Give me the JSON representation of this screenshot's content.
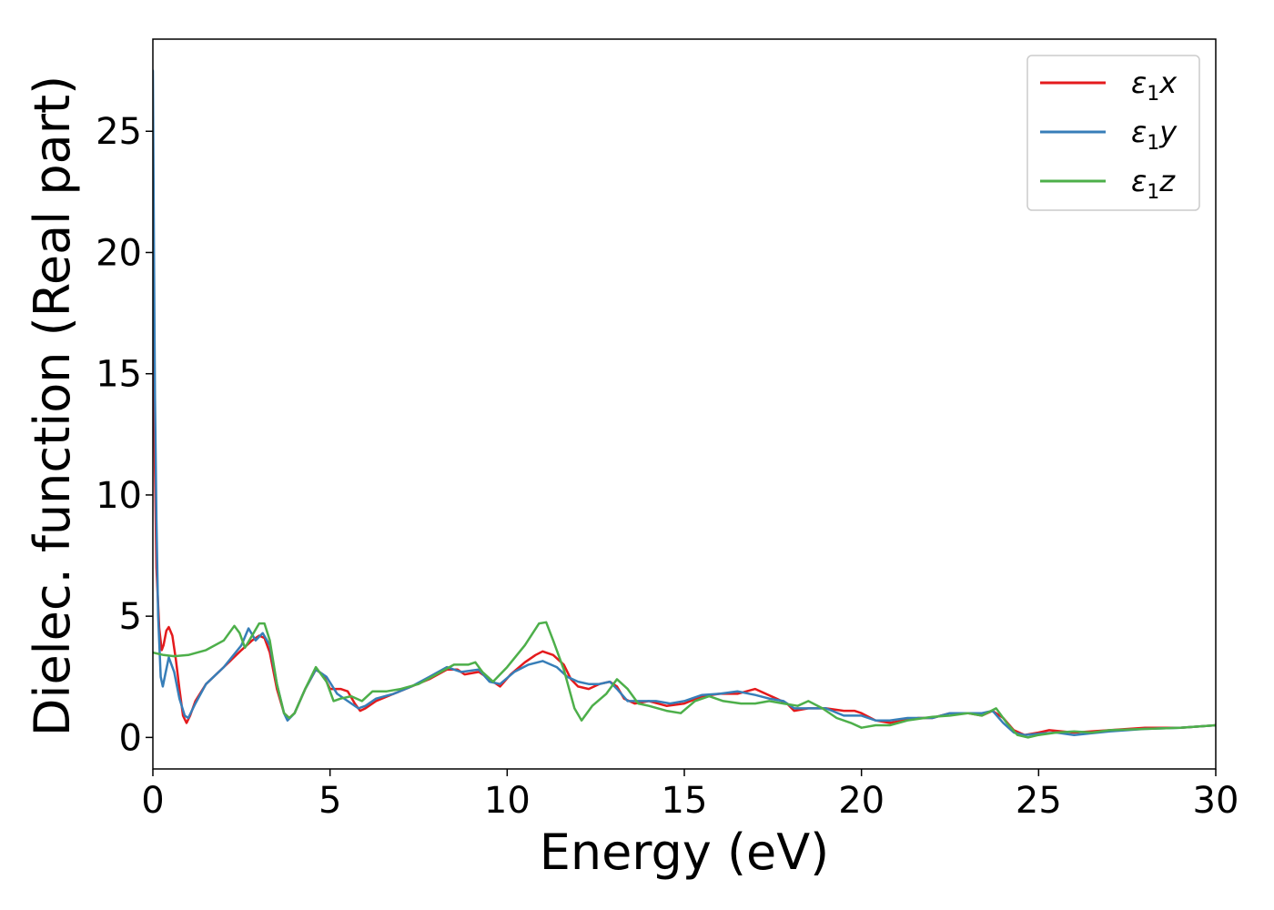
{
  "chart_data": {
    "type": "line",
    "xlabel": "Energy (eV)",
    "ylabel": "Dielec. function (Real part)",
    "xlim": [
      0,
      30
    ],
    "ylim": [
      -1.3,
      28.8
    ],
    "xticks": [
      0,
      5,
      10,
      15,
      20,
      25,
      30
    ],
    "yticks": [
      0,
      5,
      10,
      15,
      20,
      25
    ],
    "grid": false,
    "legend_position": "top-right",
    "series": [
      {
        "name": "ε1x",
        "label_base": "ε",
        "label_sub": "1",
        "label_suffix": "x",
        "color": "#e41a1c",
        "points": [
          [
            0,
            20
          ],
          [
            0.05,
            12
          ],
          [
            0.1,
            7
          ],
          [
            0.18,
            4.5
          ],
          [
            0.25,
            3.6
          ],
          [
            0.3,
            3.8
          ],
          [
            0.38,
            4.4
          ],
          [
            0.45,
            4.55
          ],
          [
            0.55,
            4.2
          ],
          [
            0.65,
            3.2
          ],
          [
            0.75,
            2
          ],
          [
            0.85,
            0.9
          ],
          [
            0.95,
            0.6
          ],
          [
            1.05,
            0.9
          ],
          [
            1.2,
            1.5
          ],
          [
            1.5,
            2.2
          ],
          [
            2,
            2.9
          ],
          [
            2.5,
            3.6
          ],
          [
            2.8,
            4.0
          ],
          [
            3.0,
            4.2
          ],
          [
            3.15,
            4.1
          ],
          [
            3.3,
            3.5
          ],
          [
            3.5,
            2.0
          ],
          [
            3.7,
            1.0
          ],
          [
            3.85,
            0.8
          ],
          [
            4.0,
            1.0
          ],
          [
            4.3,
            2.0
          ],
          [
            4.6,
            2.8
          ],
          [
            4.8,
            2.6
          ],
          [
            5.0,
            2.0
          ],
          [
            5.3,
            2.0
          ],
          [
            5.5,
            1.9
          ],
          [
            5.7,
            1.4
          ],
          [
            5.85,
            1.1
          ],
          [
            6.0,
            1.2
          ],
          [
            6.3,
            1.5
          ],
          [
            6.8,
            1.8
          ],
          [
            7.3,
            2.1
          ],
          [
            7.8,
            2.4
          ],
          [
            8.3,
            2.8
          ],
          [
            8.6,
            2.8
          ],
          [
            8.8,
            2.6
          ],
          [
            9.2,
            2.7
          ],
          [
            9.5,
            2.4
          ],
          [
            9.8,
            2.1
          ],
          [
            10.1,
            2.6
          ],
          [
            10.5,
            3.1
          ],
          [
            10.8,
            3.4
          ],
          [
            11.0,
            3.55
          ],
          [
            11.3,
            3.4
          ],
          [
            11.6,
            3.0
          ],
          [
            11.8,
            2.4
          ],
          [
            12.0,
            2.1
          ],
          [
            12.3,
            2.0
          ],
          [
            12.6,
            2.2
          ],
          [
            12.9,
            2.3
          ],
          [
            13.1,
            2.1
          ],
          [
            13.3,
            1.6
          ],
          [
            13.6,
            1.4
          ],
          [
            14.0,
            1.5
          ],
          [
            14.5,
            1.3
          ],
          [
            15.0,
            1.4
          ],
          [
            15.5,
            1.7
          ],
          [
            16.0,
            1.8
          ],
          [
            16.5,
            1.8
          ],
          [
            17.0,
            2.0
          ],
          [
            17.3,
            1.8
          ],
          [
            17.6,
            1.6
          ],
          [
            17.9,
            1.4
          ],
          [
            18.1,
            1.1
          ],
          [
            18.5,
            1.2
          ],
          [
            19.0,
            1.2
          ],
          [
            19.5,
            1.1
          ],
          [
            19.8,
            1.1
          ],
          [
            20.0,
            1.0
          ],
          [
            20.4,
            0.7
          ],
          [
            20.8,
            0.6
          ],
          [
            21.2,
            0.7
          ],
          [
            21.6,
            0.8
          ],
          [
            22.0,
            0.8
          ],
          [
            22.5,
            1.0
          ],
          [
            23.0,
            1.0
          ],
          [
            23.4,
            0.9
          ],
          [
            23.7,
            1.1
          ],
          [
            24.0,
            0.8
          ],
          [
            24.3,
            0.3
          ],
          [
            24.6,
            0.1
          ],
          [
            25.0,
            0.2
          ],
          [
            25.3,
            0.3
          ],
          [
            26.0,
            0.2
          ],
          [
            27.0,
            0.3
          ],
          [
            28.0,
            0.4
          ],
          [
            29.0,
            0.4
          ],
          [
            30.0,
            0.5
          ]
        ]
      },
      {
        "name": "ε1y",
        "label_base": "ε",
        "label_sub": "1",
        "label_suffix": "y",
        "color": "#377eb8",
        "points": [
          [
            0,
            27.5
          ],
          [
            0.03,
            20
          ],
          [
            0.06,
            14
          ],
          [
            0.1,
            9
          ],
          [
            0.15,
            5
          ],
          [
            0.22,
            2.5
          ],
          [
            0.28,
            2.1
          ],
          [
            0.35,
            2.6
          ],
          [
            0.45,
            3.3
          ],
          [
            0.6,
            2.7
          ],
          [
            0.75,
            1.6
          ],
          [
            0.9,
            0.9
          ],
          [
            1.0,
            0.8
          ],
          [
            1.2,
            1.4
          ],
          [
            1.5,
            2.2
          ],
          [
            2.0,
            2.9
          ],
          [
            2.5,
            3.8
          ],
          [
            2.7,
            4.5
          ],
          [
            2.9,
            4.0
          ],
          [
            3.1,
            4.3
          ],
          [
            3.3,
            3.8
          ],
          [
            3.5,
            2.2
          ],
          [
            3.7,
            1.0
          ],
          [
            3.8,
            0.7
          ],
          [
            4.0,
            1.0
          ],
          [
            4.3,
            2.0
          ],
          [
            4.6,
            2.8
          ],
          [
            4.9,
            2.5
          ],
          [
            5.2,
            1.8
          ],
          [
            5.5,
            1.5
          ],
          [
            5.8,
            1.2
          ],
          [
            6.0,
            1.3
          ],
          [
            6.3,
            1.6
          ],
          [
            6.8,
            1.8
          ],
          [
            7.3,
            2.1
          ],
          [
            7.8,
            2.5
          ],
          [
            8.3,
            2.9
          ],
          [
            8.7,
            2.7
          ],
          [
            9.2,
            2.8
          ],
          [
            9.5,
            2.3
          ],
          [
            9.8,
            2.2
          ],
          [
            10.2,
            2.7
          ],
          [
            10.6,
            3.0
          ],
          [
            11.0,
            3.15
          ],
          [
            11.4,
            2.9
          ],
          [
            11.7,
            2.5
          ],
          [
            12.0,
            2.3
          ],
          [
            12.3,
            2.2
          ],
          [
            12.6,
            2.2
          ],
          [
            12.9,
            2.3
          ],
          [
            13.1,
            2.0
          ],
          [
            13.4,
            1.5
          ],
          [
            13.8,
            1.5
          ],
          [
            14.2,
            1.5
          ],
          [
            14.6,
            1.4
          ],
          [
            15.0,
            1.5
          ],
          [
            15.5,
            1.75
          ],
          [
            16.0,
            1.8
          ],
          [
            16.5,
            1.9
          ],
          [
            17.0,
            1.75
          ],
          [
            17.4,
            1.6
          ],
          [
            17.8,
            1.5
          ],
          [
            18.1,
            1.2
          ],
          [
            18.5,
            1.2
          ],
          [
            19.0,
            1.2
          ],
          [
            19.5,
            0.9
          ],
          [
            20.0,
            0.9
          ],
          [
            20.4,
            0.7
          ],
          [
            20.8,
            0.7
          ],
          [
            21.3,
            0.8
          ],
          [
            22.0,
            0.8
          ],
          [
            22.5,
            1.0
          ],
          [
            23.0,
            1.0
          ],
          [
            23.4,
            1.0
          ],
          [
            23.7,
            1.1
          ],
          [
            24.0,
            0.6
          ],
          [
            24.3,
            0.2
          ],
          [
            24.6,
            0.1
          ],
          [
            25.0,
            0.15
          ],
          [
            25.5,
            0.2
          ],
          [
            26.0,
            0.1
          ],
          [
            27.0,
            0.25
          ],
          [
            28.0,
            0.35
          ],
          [
            29.0,
            0.4
          ],
          [
            30.0,
            0.5
          ]
        ]
      },
      {
        "name": "ε1z",
        "label_base": "ε",
        "label_sub": "1",
        "label_suffix": "z",
        "color": "#4daf4a",
        "points": [
          [
            0,
            3.5
          ],
          [
            0.3,
            3.4
          ],
          [
            0.6,
            3.35
          ],
          [
            1.0,
            3.4
          ],
          [
            1.5,
            3.6
          ],
          [
            2.0,
            4.0
          ],
          [
            2.3,
            4.6
          ],
          [
            2.45,
            4.3
          ],
          [
            2.6,
            3.7
          ],
          [
            2.8,
            4.2
          ],
          [
            3.0,
            4.7
          ],
          [
            3.15,
            4.7
          ],
          [
            3.3,
            4.0
          ],
          [
            3.5,
            2.2
          ],
          [
            3.7,
            1.0
          ],
          [
            3.85,
            0.8
          ],
          [
            4.0,
            1.0
          ],
          [
            4.3,
            2.0
          ],
          [
            4.6,
            2.9
          ],
          [
            4.9,
            2.3
          ],
          [
            5.1,
            1.5
          ],
          [
            5.3,
            1.6
          ],
          [
            5.6,
            1.7
          ],
          [
            5.9,
            1.5
          ],
          [
            6.2,
            1.9
          ],
          [
            6.6,
            1.9
          ],
          [
            7.0,
            2.0
          ],
          [
            7.5,
            2.2
          ],
          [
            8.0,
            2.6
          ],
          [
            8.5,
            3.0
          ],
          [
            8.9,
            3.0
          ],
          [
            9.1,
            3.1
          ],
          [
            9.3,
            2.7
          ],
          [
            9.6,
            2.3
          ],
          [
            10.0,
            2.9
          ],
          [
            10.5,
            3.8
          ],
          [
            10.9,
            4.7
          ],
          [
            11.1,
            4.75
          ],
          [
            11.3,
            4.0
          ],
          [
            11.6,
            2.8
          ],
          [
            11.9,
            1.2
          ],
          [
            12.1,
            0.7
          ],
          [
            12.4,
            1.3
          ],
          [
            12.8,
            1.8
          ],
          [
            13.1,
            2.4
          ],
          [
            13.4,
            2.0
          ],
          [
            13.7,
            1.4
          ],
          [
            14.0,
            1.3
          ],
          [
            14.5,
            1.1
          ],
          [
            14.9,
            1.0
          ],
          [
            15.3,
            1.5
          ],
          [
            15.7,
            1.7
          ],
          [
            16.1,
            1.5
          ],
          [
            16.6,
            1.4
          ],
          [
            17.0,
            1.4
          ],
          [
            17.4,
            1.5
          ],
          [
            17.8,
            1.4
          ],
          [
            18.2,
            1.3
          ],
          [
            18.5,
            1.5
          ],
          [
            18.9,
            1.2
          ],
          [
            19.3,
            0.8
          ],
          [
            19.7,
            0.6
          ],
          [
            20.0,
            0.4
          ],
          [
            20.4,
            0.5
          ],
          [
            20.8,
            0.5
          ],
          [
            21.3,
            0.7
          ],
          [
            22.0,
            0.85
          ],
          [
            22.5,
            0.9
          ],
          [
            23.0,
            1.0
          ],
          [
            23.4,
            0.9
          ],
          [
            23.8,
            1.2
          ],
          [
            24.1,
            0.6
          ],
          [
            24.4,
            0.1
          ],
          [
            24.7,
            0.0
          ],
          [
            25.0,
            0.1
          ],
          [
            25.5,
            0.2
          ],
          [
            26.0,
            0.25
          ],
          [
            26.5,
            0.2
          ],
          [
            27.0,
            0.3
          ],
          [
            28.0,
            0.35
          ],
          [
            29.0,
            0.4
          ],
          [
            30.0,
            0.5
          ]
        ]
      }
    ]
  }
}
